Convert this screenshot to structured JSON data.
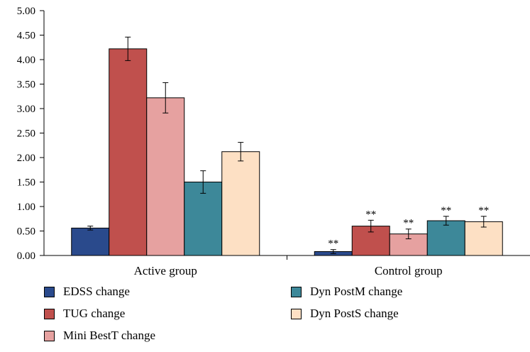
{
  "chart_data": {
    "type": "bar",
    "categories": [
      "Active group",
      "Control group"
    ],
    "series": [
      {
        "name": "EDSS change",
        "values": [
          0.56,
          0.08
        ],
        "errors": [
          0.04,
          0.04
        ],
        "color": "#2a4a8c"
      },
      {
        "name": "TUG change",
        "values": [
          4.22,
          0.6
        ],
        "errors": [
          0.24,
          0.12
        ],
        "color": "#c0504d"
      },
      {
        "name": "Mini BestT change",
        "values": [
          3.22,
          0.44
        ],
        "errors": [
          0.31,
          0.1
        ],
        "color": "#e6a1a0"
      },
      {
        "name": "Dyn PostM change",
        "values": [
          1.5,
          0.71
        ],
        "errors": [
          0.23,
          0.09
        ],
        "color": "#3d8899"
      },
      {
        "name": "Dyn PostS change",
        "values": [
          2.12,
          0.69
        ],
        "errors": [
          0.19,
          0.11
        ],
        "color": "#fde0c4"
      }
    ],
    "significance": {
      "Control group": [
        "**",
        "**",
        "**",
        "**",
        "**"
      ]
    },
    "ylim": [
      0,
      5
    ],
    "yticks": [
      "0.00",
      "0.50",
      "1.00",
      "1.50",
      "2.00",
      "2.50",
      "3.00",
      "3.50",
      "4.00",
      "4.50",
      "5.00"
    ],
    "title": "",
    "xlabel": "",
    "ylabel": "",
    "grid": false,
    "legend_position": "bottom"
  }
}
